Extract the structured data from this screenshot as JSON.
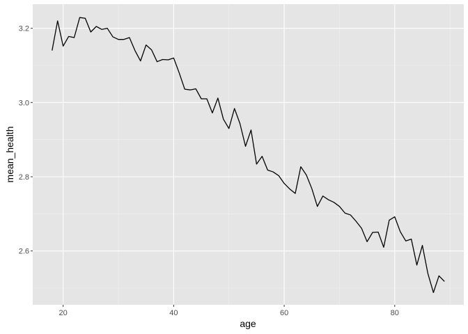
{
  "chart_data": {
    "type": "line",
    "title": "",
    "xlabel": "age",
    "ylabel": "mean_health",
    "xlim": [
      14.5,
      92.5
    ],
    "ylim": [
      2.455,
      3.265
    ],
    "x_major_ticks": [
      20,
      40,
      60,
      80
    ],
    "x_minor_ticks": [
      30,
      50,
      70,
      90
    ],
    "y_major_ticks": [
      2.6,
      2.8,
      3.0,
      3.2
    ],
    "y_minor_ticks": [
      2.5,
      2.7,
      2.9,
      3.1
    ],
    "x_tick_labels": [
      "20",
      "40",
      "60",
      "80"
    ],
    "y_tick_labels": [
      "2.6",
      "2.8",
      "3.0",
      "3.2"
    ],
    "grid": true,
    "legend": "none",
    "series": [
      {
        "x": [
          18,
          19,
          20,
          21,
          22,
          23,
          24,
          25,
          26,
          27,
          28,
          29,
          30,
          31,
          32,
          33,
          34,
          35,
          36,
          37,
          38,
          39,
          40,
          41,
          42,
          43,
          44,
          45,
          46,
          47,
          48,
          49,
          50,
          51,
          52,
          53,
          54,
          55,
          56,
          57,
          58,
          59,
          60,
          61,
          62,
          63,
          64,
          65,
          66,
          67,
          68,
          69,
          70,
          71,
          72,
          73,
          74,
          75,
          76,
          77,
          78,
          79,
          80,
          81,
          82,
          83,
          84,
          85,
          86,
          87,
          88,
          89
        ],
        "values": [
          3.14,
          3.22,
          3.152,
          3.178,
          3.175,
          3.229,
          3.227,
          3.19,
          3.205,
          3.197,
          3.2,
          3.177,
          3.17,
          3.17,
          3.175,
          3.14,
          3.112,
          3.155,
          3.142,
          3.11,
          3.116,
          3.115,
          3.12,
          3.08,
          3.036,
          3.034,
          3.037,
          3.01,
          3.01,
          2.972,
          3.012,
          2.955,
          2.93,
          2.984,
          2.943,
          2.882,
          2.926,
          2.834,
          2.855,
          2.818,
          2.813,
          2.803,
          2.782,
          2.767,
          2.755,
          2.827,
          2.805,
          2.768,
          2.72,
          2.748,
          2.738,
          2.731,
          2.72,
          2.702,
          2.697,
          2.68,
          2.661,
          2.625,
          2.65,
          2.651,
          2.61,
          2.683,
          2.692,
          2.652,
          2.627,
          2.632,
          2.562,
          2.615,
          2.539,
          2.488,
          2.533,
          2.518
        ]
      }
    ]
  },
  "colors": {
    "panel": "#e5e5e5",
    "grid": "#ffffff",
    "line": "#000000",
    "tick_text": "#4d4d4d"
  }
}
